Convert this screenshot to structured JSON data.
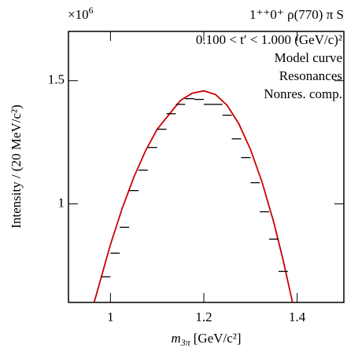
{
  "chart_data": {
    "type": "scatter",
    "multiplier": "×10",
    "multiplier_exponent": "6",
    "title": "1⁺⁺0⁺ ρ(770) π S",
    "kinematic_range": "0.100 < t′ < 1.000 (GeV/c)²",
    "legend": [
      {
        "name": "Model curve",
        "color": "#cc0000"
      },
      {
        "name": "Resonances",
        "color": "#0000dd"
      },
      {
        "name": "Nonres. comp.",
        "color": "#009900"
      }
    ],
    "x_label": {
      "symbol": "m",
      "subscript": "3π",
      "unit": "[GeV/c²]"
    },
    "y_label": "Intensity / (20 MeV/c²)",
    "xlim": [
      0.91,
      1.5
    ],
    "ylim": [
      0.6,
      1.7
    ],
    "xticks": [
      1,
      1.2,
      1.4
    ],
    "yticks": [
      1,
      1.5
    ],
    "points": {
      "color": "#000000",
      "xerr": 0.01,
      "x": [
        0.99,
        1.01,
        1.03,
        1.05,
        1.07,
        1.09,
        1.11,
        1.13,
        1.15,
        1.17,
        1.19,
        1.21,
        1.23,
        1.25,
        1.27,
        1.29,
        1.31,
        1.33,
        1.35,
        1.37
      ],
      "values": [
        0.704,
        0.8,
        0.905,
        1.054,
        1.137,
        1.229,
        1.303,
        1.366,
        1.404,
        1.427,
        1.424,
        1.404,
        1.404,
        1.36,
        1.264,
        1.188,
        1.086,
        0.968,
        0.857,
        0.726
      ]
    },
    "curve": {
      "color": "#cc0000",
      "x": [
        0.965,
        1.0,
        1.025,
        1.05,
        1.075,
        1.1,
        1.15,
        1.175,
        1.2,
        1.225,
        1.25,
        1.275,
        1.3,
        1.325,
        1.35,
        1.37,
        1.39
      ],
      "values": [
        0.6,
        0.835,
        0.981,
        1.108,
        1.215,
        1.303,
        1.42,
        1.449,
        1.459,
        1.444,
        1.4,
        1.325,
        1.221,
        1.087,
        0.924,
        0.771,
        0.6
      ]
    }
  }
}
